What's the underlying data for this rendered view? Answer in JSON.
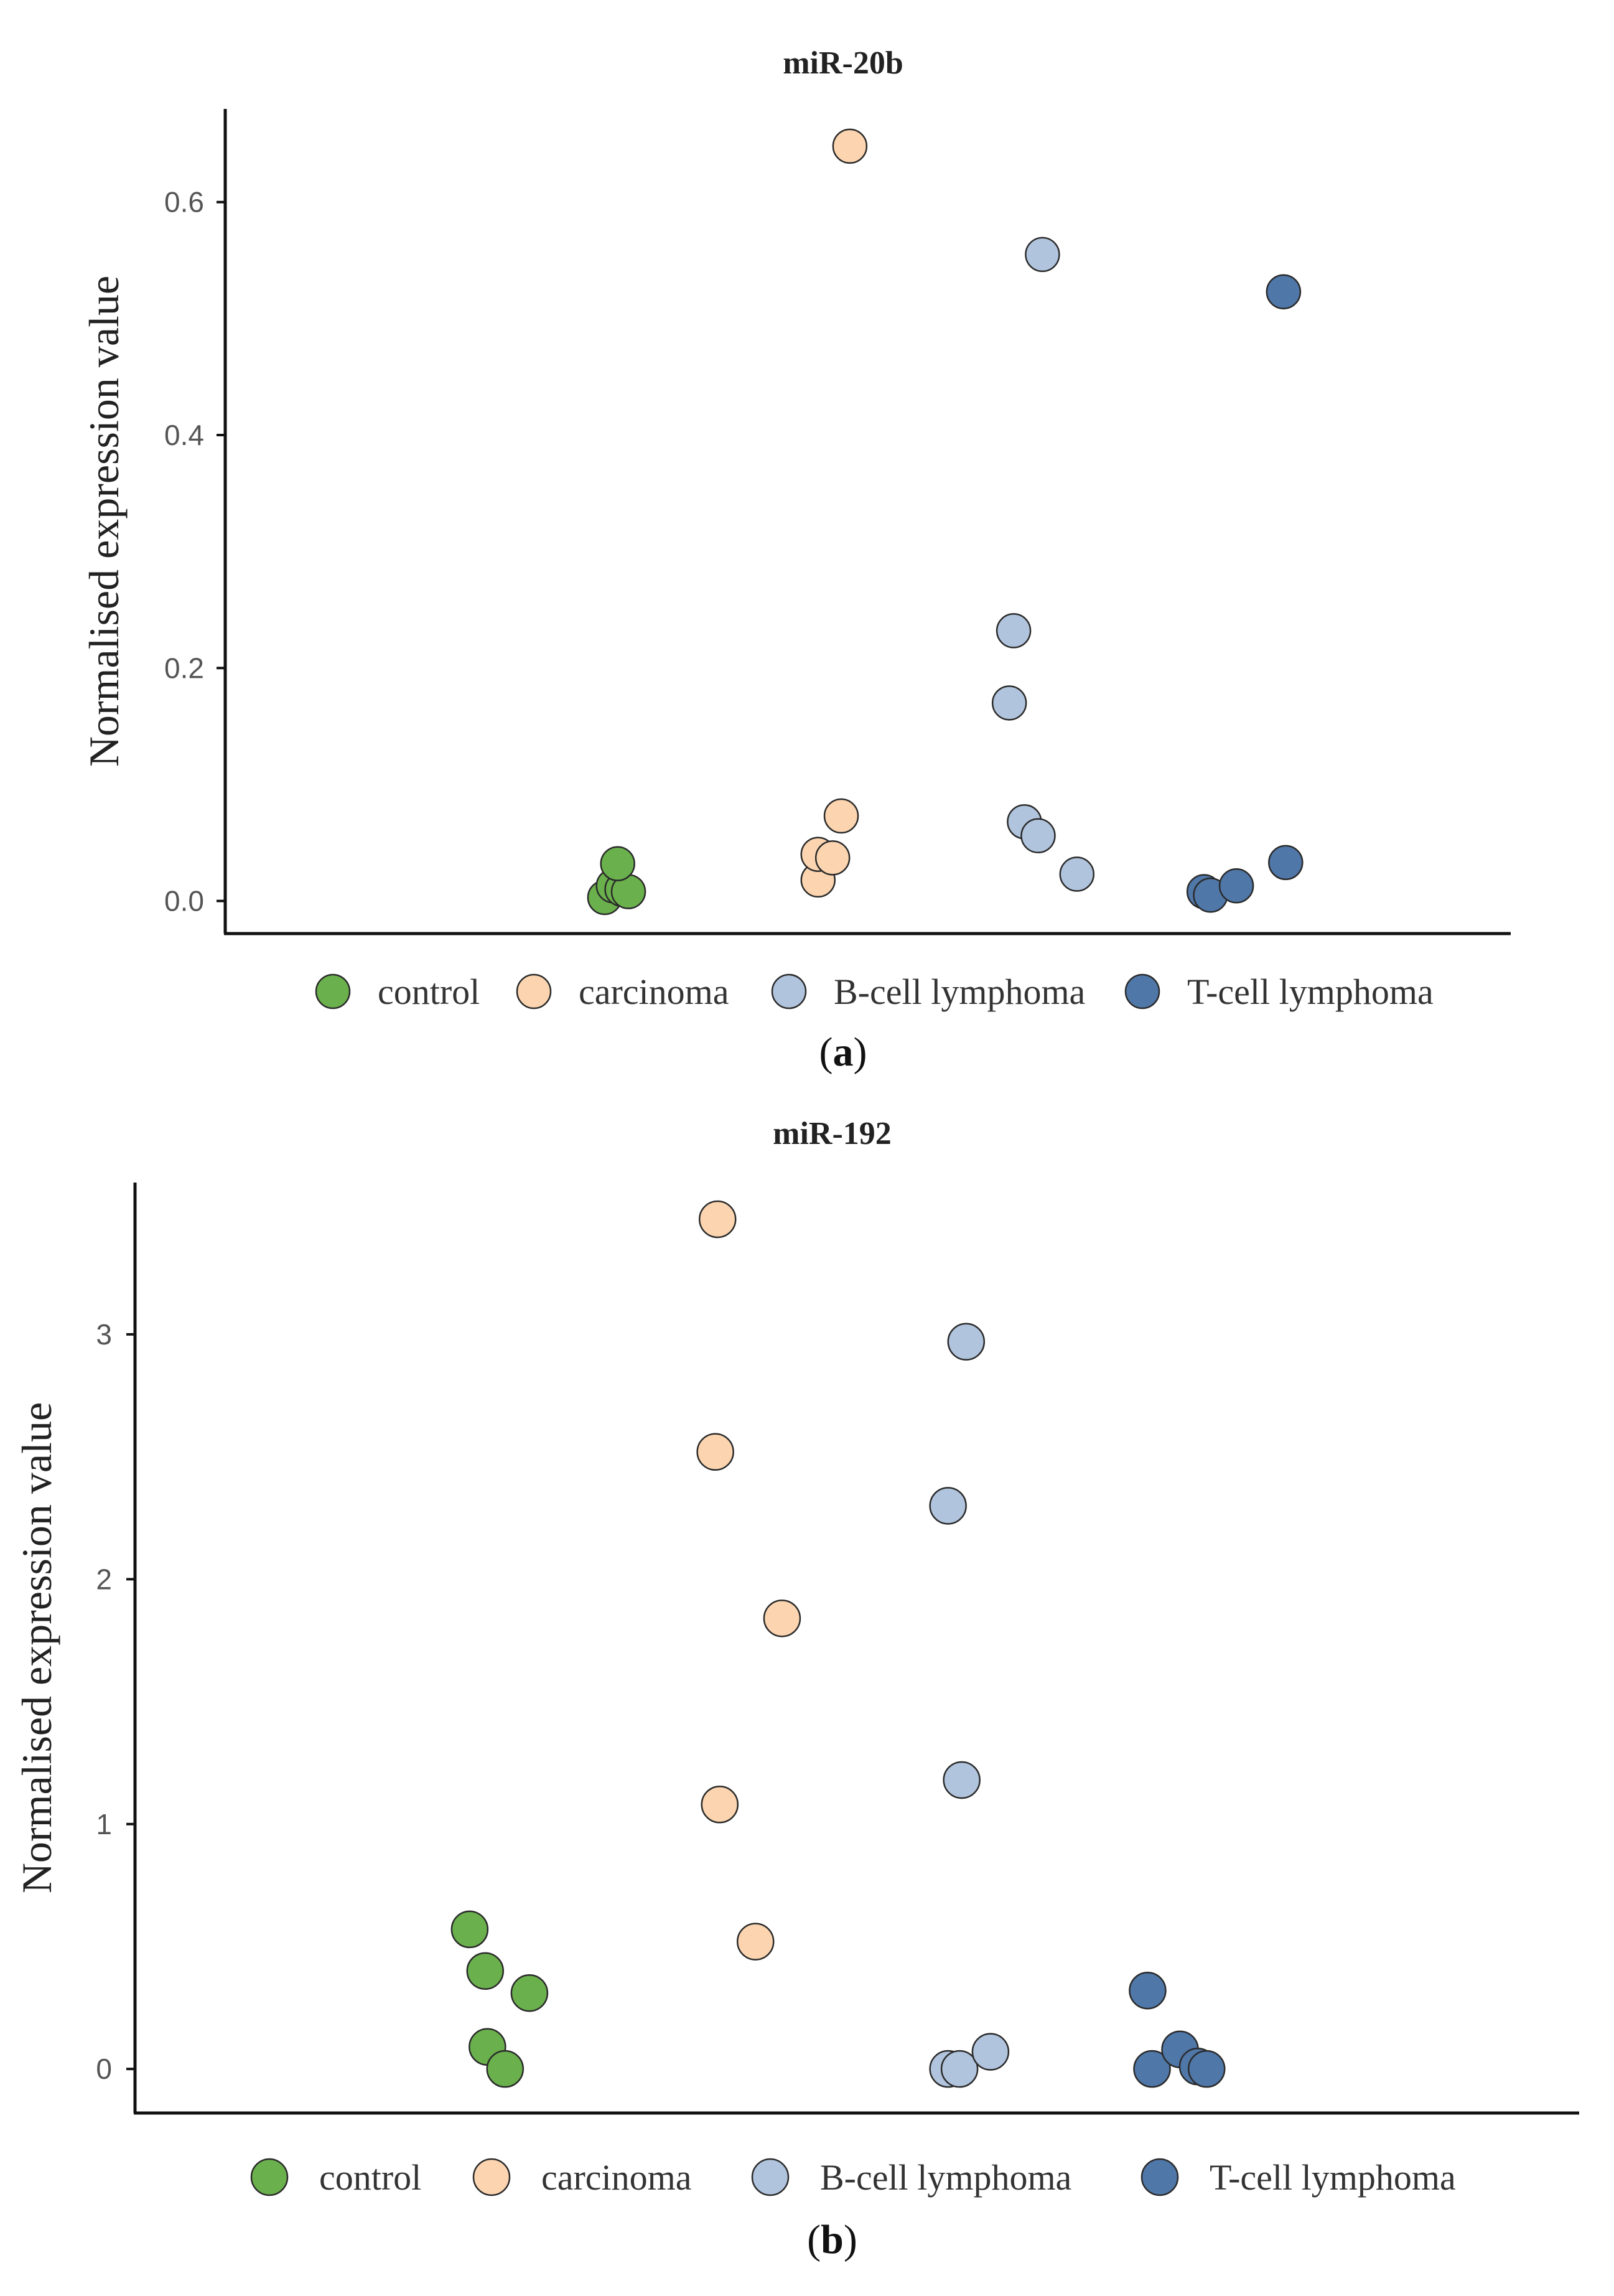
{
  "chart_data": [
    {
      "type": "scatter",
      "title": "miR-20b",
      "panel_label": "a",
      "ylabel": "Normalised expression value",
      "xlabel": "",
      "ylim": [
        -0.028,
        0.68
      ],
      "yticks": [
        "0.0",
        "0.2",
        "0.4",
        "0.6"
      ],
      "grid": false,
      "legend_position": "bottom",
      "categories": [
        "control",
        "carcinoma",
        "B-cell lymphoma",
        "T-cell lymphoma"
      ],
      "colors": [
        "#6ab04c",
        "#fcd5b0",
        "#b1c4dd",
        "#4f77a8"
      ],
      "series": [
        {
          "name": "control",
          "points": [
            [
              0.89,
              0.003
            ],
            [
              0.93,
              0.013
            ],
            [
              0.97,
              0.01
            ],
            [
              1.0,
              0.008
            ],
            [
              0.95,
              0.032
            ]
          ]
        },
        {
          "name": "carcinoma",
          "points": [
            [
              1.88,
              0.018
            ],
            [
              1.88,
              0.04
            ],
            [
              2.09,
              0.037
            ],
            [
              2.13,
              0.073
            ],
            [
              2.17,
              0.648
            ]
          ]
        },
        {
          "name": "B-cell lymphoma",
          "points": [
            [
              2.93,
              0.232
            ],
            [
              2.91,
              0.17
            ],
            [
              2.98,
              0.068
            ],
            [
              3.01,
              0.056
            ],
            [
              3.19,
              0.023
            ],
            [
              3.03,
              0.555
            ]
          ]
        },
        {
          "name": "T-cell lymphoma",
          "points": [
            [
              3.78,
              0.008
            ],
            [
              3.81,
              0.005
            ],
            [
              3.93,
              0.013
            ],
            [
              4.05,
              0.033
            ],
            [
              4.04,
              0.523
            ]
          ]
        }
      ]
    },
    {
      "type": "scatter",
      "title": "miR-192",
      "panel_label": "b",
      "ylabel": "Normalised expression value",
      "xlabel": "",
      "ylim": [
        -0.18,
        3.62
      ],
      "yticks": [
        "0",
        "1",
        "2",
        "3"
      ],
      "grid": false,
      "legend_position": "bottom",
      "categories": [
        "control",
        "carcinoma",
        "B-cell lymphoma",
        "T-cell lymphoma"
      ],
      "colors": [
        "#6ab04c",
        "#fcd5b0",
        "#b1c4dd",
        "#4f77a8"
      ],
      "series": [
        {
          "name": "control",
          "points": [
            [
              0.8,
              0.57
            ],
            [
              0.87,
              0.4
            ],
            [
              1.07,
              0.31
            ],
            [
              0.88,
              0.09
            ],
            [
              0.96,
              0.0
            ]
          ]
        },
        {
          "name": "carcinoma",
          "points": [
            [
              1.92,
              3.47
            ],
            [
              1.91,
              2.52
            ],
            [
              2.16,
              1.84
            ],
            [
              1.93,
              1.08
            ],
            [
              2.04,
              0.52
            ]
          ]
        },
        {
          "name": "B-cell lymphoma",
          "points": [
            [
              3.05,
              2.97
            ],
            [
              2.91,
              2.3
            ],
            [
              3.03,
              1.18
            ],
            [
              2.91,
              0.0
            ],
            [
              3.02,
              0.0
            ],
            [
              3.16,
              0.07
            ]
          ]
        },
        {
          "name": "T-cell lymphoma",
          "points": [
            [
              3.87,
              0.32
            ],
            [
              3.89,
              0.0
            ],
            [
              4.01,
              0.08
            ],
            [
              4.09,
              0.01
            ],
            [
              4.13,
              0.0
            ]
          ]
        }
      ]
    }
  ]
}
